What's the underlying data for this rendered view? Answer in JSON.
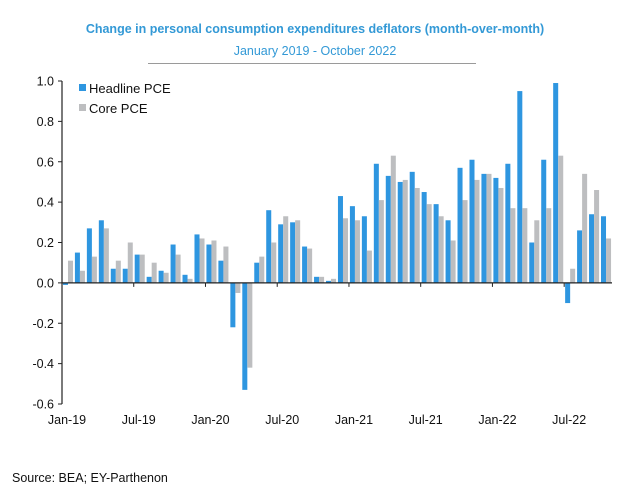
{
  "chart_data": {
    "type": "bar",
    "title": "Change in personal consumption expenditures deflators (month-over-month)",
    "subtitle": "January 2019 - October 2022",
    "xlabel": "",
    "ylabel": "",
    "ylim": [
      -0.6,
      1.0
    ],
    "yticks": [
      "1.0",
      "0.8",
      "0.6",
      "0.4",
      "0.2",
      "0.0",
      "-0.2",
      "-0.4",
      "-0.6"
    ],
    "ytick_values": [
      1.0,
      0.8,
      0.6,
      0.4,
      0.2,
      0.0,
      -0.2,
      -0.4,
      -0.6
    ],
    "xtick_labels": [
      "Jan-19",
      "Jul-19",
      "Jan-20",
      "Jul-20",
      "Jan-21",
      "Jul-21",
      "Jan-22",
      "Jul-22"
    ],
    "xtick_every": 6,
    "grid": false,
    "legend_position": "top-left",
    "categories": [
      "Jan-19",
      "Feb-19",
      "Mar-19",
      "Apr-19",
      "May-19",
      "Jun-19",
      "Jul-19",
      "Aug-19",
      "Sep-19",
      "Oct-19",
      "Nov-19",
      "Dec-19",
      "Jan-20",
      "Feb-20",
      "Mar-20",
      "Apr-20",
      "May-20",
      "Jun-20",
      "Jul-20",
      "Aug-20",
      "Sep-20",
      "Oct-20",
      "Nov-20",
      "Dec-20",
      "Jan-21",
      "Feb-21",
      "Mar-21",
      "Apr-21",
      "May-21",
      "Jun-21",
      "Jul-21",
      "Aug-21",
      "Sep-21",
      "Oct-21",
      "Nov-21",
      "Dec-21",
      "Jan-22",
      "Feb-22",
      "Mar-22",
      "Apr-22",
      "May-22",
      "Jun-22",
      "Jul-22",
      "Aug-22",
      "Sep-22",
      "Oct-22"
    ],
    "series": [
      {
        "name": "Headline PCE",
        "color": "#2e96e0",
        "values": [
          -0.01,
          0.15,
          0.27,
          0.31,
          0.07,
          0.07,
          0.14,
          0.03,
          0.06,
          0.19,
          0.04,
          0.24,
          0.19,
          0.11,
          -0.22,
          -0.53,
          0.1,
          0.36,
          0.29,
          0.3,
          0.18,
          0.03,
          0.01,
          0.43,
          0.38,
          0.33,
          0.59,
          0.53,
          0.5,
          0.55,
          0.45,
          0.39,
          0.31,
          0.57,
          0.61,
          0.54,
          0.52,
          0.59,
          0.95,
          0.2,
          0.61,
          0.99,
          -0.1,
          0.26,
          0.34,
          0.33
        ]
      },
      {
        "name": "Core PCE",
        "color": "#bdbec0",
        "values": [
          0.11,
          0.06,
          0.13,
          0.27,
          0.11,
          0.2,
          0.14,
          0.1,
          0.05,
          0.14,
          0.02,
          0.22,
          0.21,
          0.18,
          -0.05,
          -0.42,
          0.13,
          0.2,
          0.33,
          0.31,
          0.17,
          0.03,
          0.02,
          0.32,
          0.31,
          0.16,
          0.41,
          0.63,
          0.51,
          0.47,
          0.39,
          0.33,
          0.21,
          0.41,
          0.51,
          0.54,
          0.47,
          0.37,
          0.37,
          0.31,
          0.37,
          0.63,
          0.07,
          0.54,
          0.46,
          0.22
        ]
      }
    ]
  },
  "source": "Source: BEA; EY-Parthenon"
}
